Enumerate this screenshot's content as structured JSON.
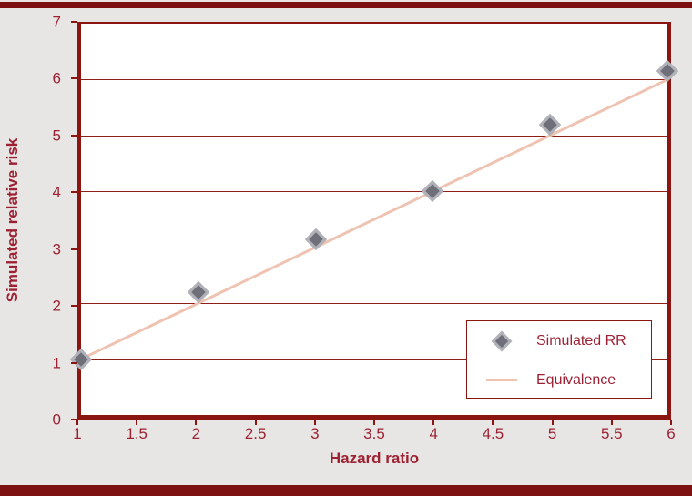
{
  "figure": {
    "background": "#e7e6e4",
    "frame_bar_color": "#7d1010",
    "axis_color": "#8a1511",
    "text_color": "#9d2133"
  },
  "chart_data": {
    "type": "scatter",
    "title": "",
    "xlabel": "Hazard ratio",
    "ylabel": "Simulated relative risk",
    "xlim": [
      1,
      6
    ],
    "ylim": [
      0,
      7
    ],
    "x_ticks": [
      "1",
      "1.5",
      "2",
      "2.5",
      "3",
      "3.5",
      "4",
      "4.5",
      "5",
      "5.5",
      "6"
    ],
    "x_tick_values": [
      1,
      1.5,
      2,
      2.5,
      3,
      3.5,
      4,
      4.5,
      5,
      5.5,
      6
    ],
    "y_ticks": [
      "0",
      "1",
      "2",
      "3",
      "4",
      "5",
      "6",
      "7"
    ],
    "y_tick_values": [
      0,
      1,
      2,
      3,
      4,
      5,
      6,
      7
    ],
    "grid": "horizontal",
    "legend_position": "inside-lower-right",
    "series": [
      {
        "name": "Simulated RR",
        "type": "scatter",
        "marker": "diamond",
        "marker_fill": "#6f6f79",
        "marker_edge": "#b1b1b9",
        "x": [
          1,
          2,
          3,
          4,
          5,
          6
        ],
        "y": [
          1.0,
          2.2,
          3.15,
          4.0,
          5.2,
          6.15
        ]
      },
      {
        "name": "Equivalence",
        "type": "line",
        "color": "#eec3b2",
        "x": [
          1,
          6
        ],
        "y": [
          1,
          6
        ]
      }
    ],
    "legend": [
      {
        "label": "Simulated RR",
        "swatch": "diamond-icon"
      },
      {
        "label": "Equivalence",
        "swatch": "line-swatch"
      }
    ]
  }
}
